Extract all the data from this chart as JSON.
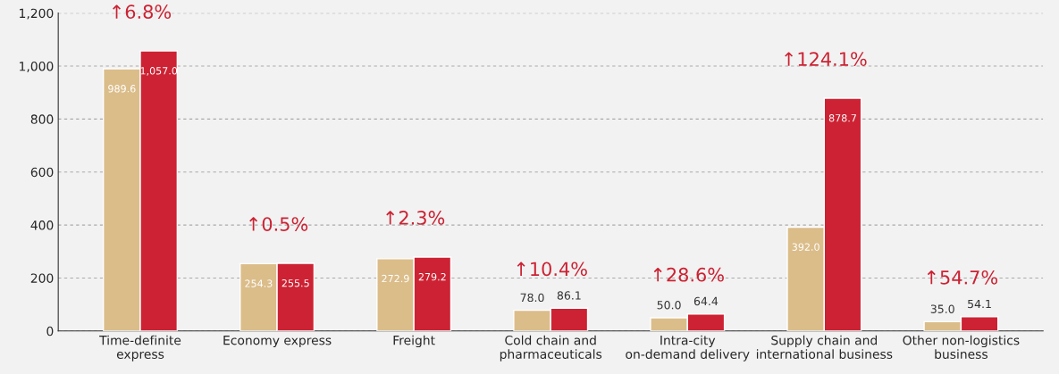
{
  "chart_data": {
    "type": "bar",
    "categories": [
      "Time-definite\nexpress",
      "Economy express",
      "Freight",
      "Cold chain and\npharmaceuticals",
      "Intra-city\non-demand delivery",
      "Supply chain and\ninternational business",
      "Other non-logistics\nbusiness"
    ],
    "series": [
      {
        "color": "#dbbd8a",
        "values": [
          989.6,
          254.3,
          272.9,
          78.0,
          50.0,
          392.0,
          35.0
        ],
        "value_labels": [
          "989.6",
          "254.3",
          "272.9",
          "78.0",
          "50.0",
          "392.0",
          "35.0"
        ]
      },
      {
        "color": "#cc2233",
        "values": [
          1057.0,
          255.5,
          279.2,
          86.1,
          64.4,
          878.7,
          54.1
        ],
        "value_labels": [
          "1,057.0",
          "255.5",
          "279.2",
          "86.1",
          "64.4",
          "878.7",
          "54.1"
        ]
      }
    ],
    "annotations": [
      "↑6.8%",
      "↑0.5%",
      "↑2.3%",
      "↑10.4%",
      "↑28.6%",
      "↑124.1%",
      "↑54.7%"
    ],
    "ylim": [
      0,
      1200
    ],
    "yticks": [
      0,
      200,
      400,
      600,
      800,
      {
        "value": 1000,
        "label": "1,000"
      },
      {
        "value": 1200,
        "label": "1,200"
      }
    ],
    "grid": "y"
  }
}
